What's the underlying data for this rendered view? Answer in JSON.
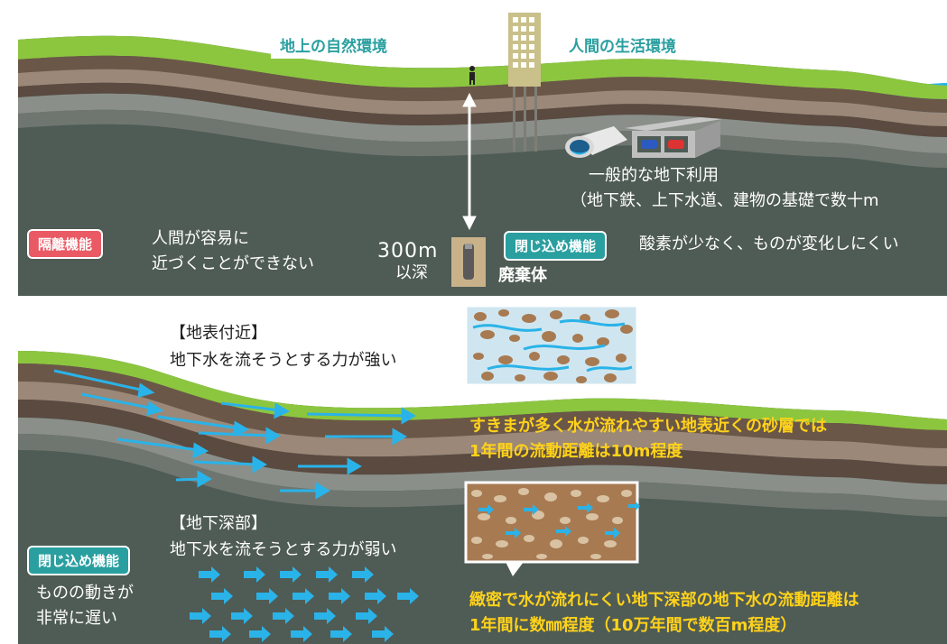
{
  "top": {
    "env_natural": "地上の自然環境",
    "env_human": "人間の生活環境",
    "general_use_title": "一般的な地下利用",
    "general_use_detail": "（地下鉄、上下水道、建物の基礎で数十m",
    "isolation_tag": "隔離機能",
    "isolation_line1": "人間が容易に",
    "isolation_line2": "近づくことができない",
    "depth_value": "300m",
    "depth_suffix": "以深",
    "waste_label": "廃棄体",
    "containment_tag": "閉じ込め機能",
    "containment_desc": "酸素が少なく、ものが変化しにくい"
  },
  "bottom": {
    "surface_title": "【地表付近】",
    "surface_desc": "地下水を流そうとする力が強い",
    "surface_note_line1": "すきまが多く水が流れやすい地表近くの砂層では",
    "surface_note_line2": "1年間の流動距離は10m程度",
    "deep_title": "【地下深部】",
    "deep_desc": "地下水を流そうとする力が弱い",
    "containment_tag": "閉じ込め機能",
    "containment_line1": "ものの動きが",
    "containment_line2": "非常に遅い",
    "deep_note_line1": "緻密で水が流れにくい地下深部の地下水の流動距離は",
    "deep_note_line2": "1年間に数㎜程度（10万年間で数百m程度）"
  },
  "colors": {
    "sky": "#ffffff",
    "grass": "#8cc63f",
    "soil_light": "#9b8878",
    "soil_dark": "#5a4a40",
    "rock": "#4f5b55",
    "water": "#2ab3e8",
    "teal": "#2a9fa0",
    "red": "#e95a64",
    "note_yellow": "#ffd21a"
  }
}
